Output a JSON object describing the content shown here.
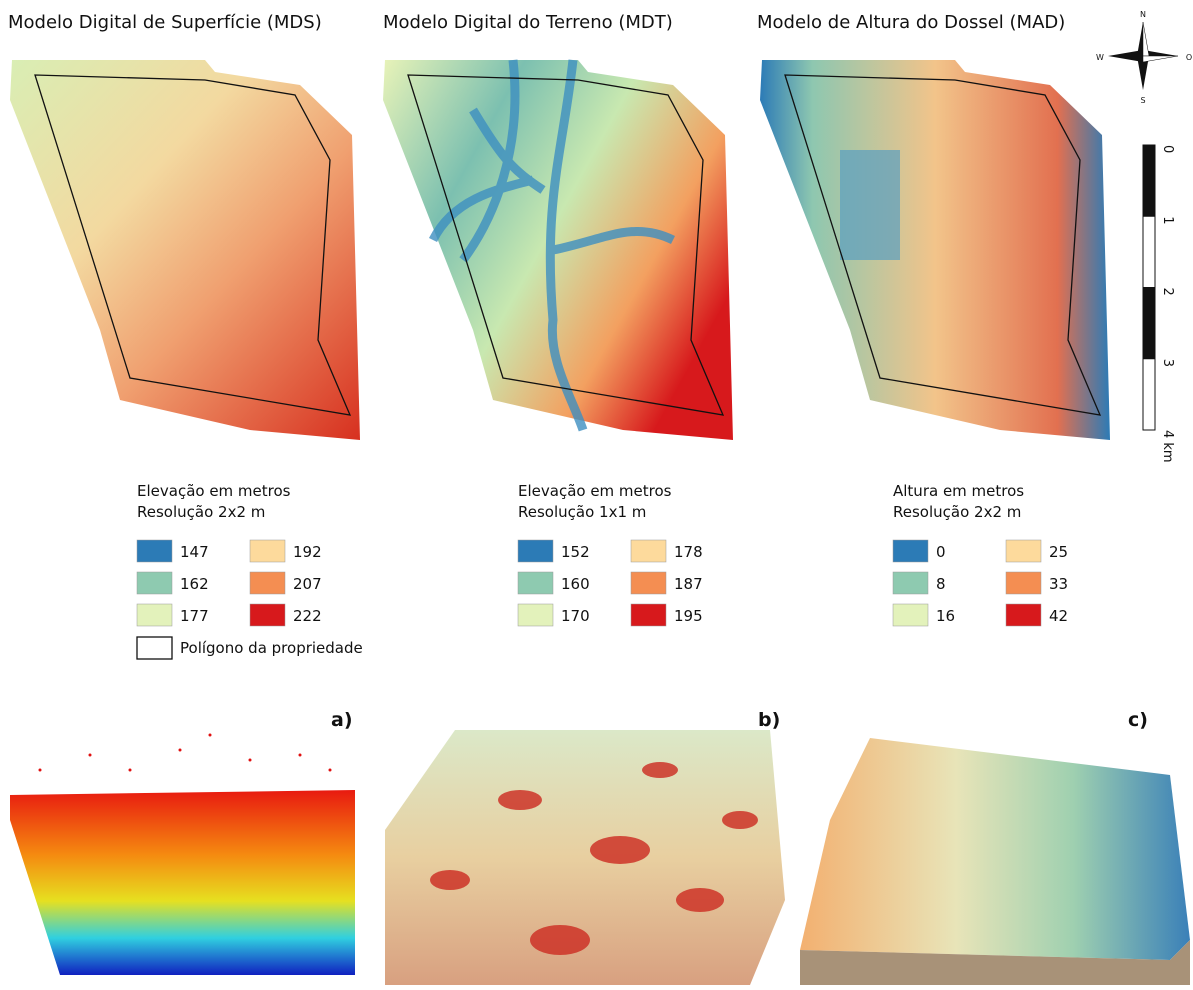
{
  "panels": [
    {
      "title": "Modelo Digital de Superfície (MDS)",
      "legend_title": "Elevação em metros",
      "resolution": "Resolução 2x2 m",
      "classes": [
        147,
        162,
        177,
        192,
        207,
        222
      ]
    },
    {
      "title": "Modelo Digital do Terreno (MDT)",
      "legend_title": "Elevação em metros",
      "resolution": "Resolução 1x1 m",
      "classes": [
        152,
        160,
        170,
        178,
        187,
        195
      ]
    },
    {
      "title": "Modelo de Altura do Dossel (MAD)",
      "legend_title": "Altura em metros",
      "resolution": "Resolução 2x2 m",
      "classes": [
        0,
        8,
        16,
        25,
        33,
        42
      ]
    }
  ],
  "polygon_legend": "Polígono da propriedade",
  "north_arrow": {
    "n": "N",
    "s": "S",
    "w": "W",
    "e": "O"
  },
  "scale_bar": [
    "0",
    "1",
    "2",
    "3",
    "4 km"
  ],
  "views": [
    "a)",
    "b)",
    "c)"
  ]
}
